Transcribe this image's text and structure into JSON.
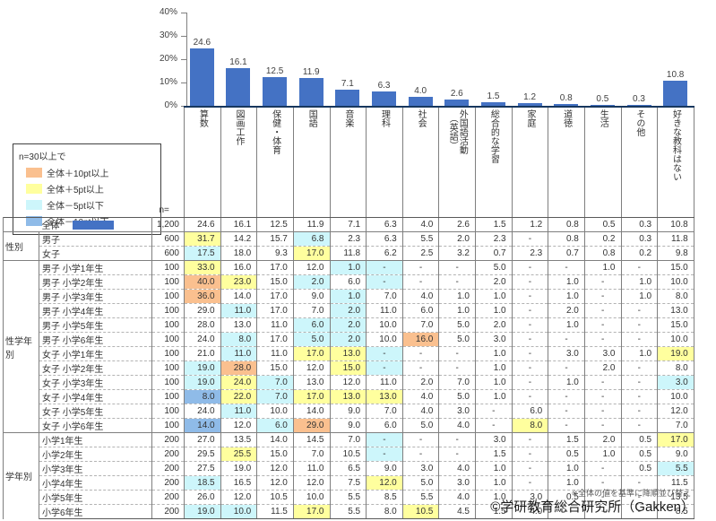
{
  "chart_data": {
    "type": "bar",
    "title": "",
    "xlabel": "",
    "ylabel": "",
    "ylim": [
      0,
      40
    ],
    "y_tick_labels": [
      "40%",
      "30%",
      "20%",
      "10%",
      "0%"
    ],
    "grid": false,
    "bar_color": "#4472c4",
    "categories": [
      "算数",
      "図画工作",
      "保健・体育",
      "国語",
      "音楽",
      "理科",
      "社会",
      "外国語活動\n（英語）",
      "総合的な学習",
      "家庭",
      "道徳",
      "生活",
      "その他",
      "好きな教科はない"
    ],
    "values": [
      24.6,
      16.1,
      12.5,
      11.9,
      7.1,
      6.3,
      4.0,
      2.6,
      1.5,
      1.2,
      0.8,
      0.5,
      0.3,
      10.8
    ],
    "table": {
      "n_header": "n=",
      "groups": [
        {
          "label": "",
          "rows": [
            {
              "label": "全体",
              "total": true,
              "n": "1,200",
              "values": [
                "24.6",
                "16.1",
                "12.5",
                "11.9",
                "7.1",
                "6.3",
                "4.0",
                "2.6",
                "1.5",
                "1.2",
                "0.8",
                "0.5",
                "0.3",
                "10.8"
              ],
              "hl": [
                "",
                "",
                "",
                "",
                "",
                "",
                "",
                "",
                "",
                "",
                "",
                "",
                "",
                ""
              ]
            }
          ]
        },
        {
          "label": "性別",
          "rows": [
            {
              "label": "男子",
              "n": "600",
              "values": [
                "31.7",
                "14.2",
                "15.7",
                "6.8",
                "2.3",
                "6.3",
                "5.5",
                "2.0",
                "2.3",
                "-",
                "0.8",
                "0.2",
                "0.3",
                "11.8"
              ],
              "hl": [
                "y",
                "",
                "",
                "c",
                "",
                "",
                "",
                "",
                "",
                "",
                "",
                "",
                "",
                ""
              ]
            },
            {
              "label": "女子",
              "n": "600",
              "values": [
                "17.5",
                "18.0",
                "9.3",
                "17.0",
                "11.8",
                "6.2",
                "2.5",
                "3.2",
                "0.7",
                "2.3",
                "0.7",
                "0.8",
                "0.2",
                "9.8"
              ],
              "hl": [
                "c",
                "",
                "",
                "y",
                "",
                "",
                "",
                "",
                "",
                "",
                "",
                "",
                "",
                ""
              ]
            }
          ]
        },
        {
          "label": "性学年別",
          "rows": [
            {
              "label": "男子 小学1年生",
              "n": "100",
              "values": [
                "33.0",
                "16.0",
                "17.0",
                "12.0",
                "1.0",
                "-",
                "-",
                "-",
                "5.0",
                "-",
                "-",
                "1.0",
                "-",
                "15.0"
              ],
              "hl": [
                "y",
                "",
                "",
                "",
                "c",
                "c",
                "",
                "",
                "",
                "",
                "",
                "",
                "",
                ""
              ]
            },
            {
              "label": "男子 小学2年生",
              "n": "100",
              "values": [
                "40.0",
                "23.0",
                "15.0",
                "2.0",
                "6.0",
                "-",
                "-",
                "-",
                "2.0",
                "-",
                "1.0",
                "-",
                "1.0",
                "10.0"
              ],
              "hl": [
                "o",
                "y",
                "",
                "c",
                "",
                "c",
                "",
                "",
                "",
                "",
                "",
                "",
                "",
                ""
              ]
            },
            {
              "label": "男子 小学3年生",
              "n": "100",
              "values": [
                "36.0",
                "14.0",
                "17.0",
                "9.0",
                "1.0",
                "7.0",
                "4.0",
                "1.0",
                "1.0",
                "-",
                "1.0",
                "-",
                "1.0",
                "8.0"
              ],
              "hl": [
                "o",
                "",
                "",
                "",
                "c",
                "",
                "",
                "",
                "",
                "",
                "",
                "",
                "",
                ""
              ]
            },
            {
              "label": "男子 小学4年生",
              "n": "100",
              "values": [
                "29.0",
                "11.0",
                "17.0",
                "7.0",
                "2.0",
                "11.0",
                "6.0",
                "1.0",
                "1.0",
                "-",
                "2.0",
                "-",
                "-",
                "13.0"
              ],
              "hl": [
                "",
                "c",
                "",
                "",
                "c",
                "",
                "",
                "",
                "",
                "",
                "",
                "",
                "",
                ""
              ]
            },
            {
              "label": "男子 小学5年生",
              "n": "100",
              "values": [
                "28.0",
                "13.0",
                "11.0",
                "6.0",
                "2.0",
                "10.0",
                "7.0",
                "5.0",
                "2.0",
                "-",
                "1.0",
                "-",
                "-",
                "15.0"
              ],
              "hl": [
                "",
                "",
                "",
                "c",
                "c",
                "",
                "",
                "",
                "",
                "",
                "",
                "",
                "",
                ""
              ]
            },
            {
              "label": "男子 小学6年生",
              "n": "100",
              "values": [
                "24.0",
                "8.0",
                "17.0",
                "5.0",
                "2.0",
                "10.0",
                "16.0",
                "5.0",
                "3.0",
                "-",
                "-",
                "-",
                "-",
                "10.0"
              ],
              "hl": [
                "",
                "c",
                "",
                "c",
                "c",
                "",
                "o",
                "",
                "",
                "",
                "",
                "",
                "",
                ""
              ]
            },
            {
              "label": "女子 小学1年生",
              "n": "100",
              "values": [
                "21.0",
                "11.0",
                "11.0",
                "17.0",
                "13.0",
                "-",
                "-",
                "-",
                "1.0",
                "-",
                "3.0",
                "3.0",
                "1.0",
                "19.0"
              ],
              "hl": [
                "",
                "c",
                "",
                "y",
                "y",
                "c",
                "",
                "",
                "",
                "",
                "",
                "",
                "",
                "y"
              ]
            },
            {
              "label": "女子 小学2年生",
              "n": "100",
              "values": [
                "19.0",
                "28.0",
                "15.0",
                "12.0",
                "15.0",
                "-",
                "-",
                "-",
                "1.0",
                "-",
                "-",
                "2.0",
                "-",
                "8.0"
              ],
              "hl": [
                "c",
                "o",
                "",
                "",
                "y",
                "c",
                "",
                "",
                "",
                "",
                "",
                "",
                "",
                ""
              ]
            },
            {
              "label": "女子 小学3年生",
              "n": "100",
              "values": [
                "19.0",
                "24.0",
                "7.0",
                "13.0",
                "12.0",
                "11.0",
                "2.0",
                "7.0",
                "1.0",
                "-",
                "1.0",
                "-",
                "-",
                "3.0"
              ],
              "hl": [
                "c",
                "y",
                "c",
                "",
                "",
                "",
                "",
                "",
                "",
                "",
                "",
                "",
                "",
                "c"
              ]
            },
            {
              "label": "女子 小学4年生",
              "n": "100",
              "values": [
                "8.0",
                "22.0",
                "7.0",
                "17.0",
                "13.0",
                "13.0",
                "4.0",
                "5.0",
                "1.0",
                "-",
                "-",
                "-",
                "-",
                "10.0"
              ],
              "hl": [
                "b",
                "y",
                "c",
                "y",
                "y",
                "y",
                "",
                "",
                "",
                "",
                "",
                "",
                "",
                ""
              ]
            },
            {
              "label": "女子 小学5年生",
              "n": "100",
              "values": [
                "24.0",
                "11.0",
                "10.0",
                "14.0",
                "9.0",
                "7.0",
                "4.0",
                "3.0",
                "-",
                "6.0",
                "-",
                "-",
                "-",
                "12.0"
              ],
              "hl": [
                "",
                "c",
                "",
                "",
                "",
                "",
                "",
                "",
                "",
                "",
                "",
                "",
                "",
                ""
              ]
            },
            {
              "label": "女子 小学6年生",
              "n": "100",
              "values": [
                "14.0",
                "12.0",
                "6.0",
                "29.0",
                "9.0",
                "6.0",
                "5.0",
                "4.0",
                "-",
                "8.0",
                "-",
                "-",
                "-",
                "7.0"
              ],
              "hl": [
                "b",
                "",
                "c",
                "o",
                "",
                "",
                "",
                "",
                "",
                "y",
                "",
                "",
                "",
                ""
              ]
            }
          ]
        },
        {
          "label": "学年別",
          "rows": [
            {
              "label": "小学1年生",
              "n": "200",
              "values": [
                "27.0",
                "13.5",
                "14.0",
                "14.5",
                "7.0",
                "-",
                "-",
                "-",
                "3.0",
                "-",
                "1.5",
                "2.0",
                "0.5",
                "17.0"
              ],
              "hl": [
                "",
                "",
                "",
                "",
                "",
                "c",
                "",
                "",
                "",
                "",
                "",
                "",
                "",
                "y"
              ]
            },
            {
              "label": "小学2年生",
              "n": "200",
              "values": [
                "29.5",
                "25.5",
                "15.0",
                "7.0",
                "10.5",
                "-",
                "-",
                "-",
                "1.5",
                "-",
                "0.5",
                "1.0",
                "0.5",
                "9.0"
              ],
              "hl": [
                "",
                "y",
                "",
                "",
                "",
                "c",
                "",
                "",
                "",
                "",
                "",
                "",
                "",
                ""
              ]
            },
            {
              "label": "小学3年生",
              "n": "200",
              "values": [
                "27.5",
                "19.0",
                "12.0",
                "11.0",
                "6.5",
                "9.0",
                "3.0",
                "4.0",
                "1.0",
                "-",
                "1.0",
                "-",
                "0.5",
                "5.5"
              ],
              "hl": [
                "",
                "",
                "",
                "",
                "",
                "",
                "",
                "",
                "",
                "",
                "",
                "",
                "",
                "c"
              ]
            },
            {
              "label": "小学4年生",
              "n": "200",
              "values": [
                "18.5",
                "16.5",
                "12.0",
                "12.0",
                "7.5",
                "12.0",
                "5.0",
                "3.0",
                "1.0",
                "-",
                "1.0",
                "-",
                "-",
                "11.5"
              ],
              "hl": [
                "c",
                "",
                "",
                "",
                "",
                "y",
                "",
                "",
                "",
                "",
                "",
                "",
                "",
                ""
              ]
            },
            {
              "label": "小学5年生",
              "n": "200",
              "values": [
                "26.0",
                "12.0",
                "10.5",
                "10.0",
                "5.5",
                "8.5",
                "5.5",
                "4.0",
                "1.0",
                "3.0",
                "0.5",
                "-",
                "-",
                "13.5"
              ],
              "hl": [
                "",
                "",
                "",
                "",
                "",
                "",
                "",
                "",
                "",
                "",
                "",
                "",
                "",
                ""
              ]
            },
            {
              "label": "小学6年生",
              "n": "200",
              "values": [
                "19.0",
                "10.0",
                "11.5",
                "17.0",
                "5.5",
                "8.0",
                "10.5",
                "4.5",
                "1.5",
                "4.0",
                "-",
                "-",
                "-",
                "8.5"
              ],
              "hl": [
                "c",
                "c",
                "",
                "y",
                "",
                "",
                "y",
                "",
                "",
                "",
                "",
                "",
                "",
                ""
              ]
            }
          ]
        }
      ]
    }
  },
  "highlight_colors": {
    "o": "#fac08f",
    "y": "#ffff9e",
    "c": "#cdf6fb",
    "b": "#8fbbe8"
  },
  "legend": {
    "title": "n=30以上で",
    "items": [
      {
        "label": "全体＋10pt以上",
        "code": "o"
      },
      {
        "label": "全体＋5pt以上",
        "code": "y"
      },
      {
        "label": "全体－5pt以下",
        "code": "c"
      },
      {
        "label": "全体－10pt以下",
        "code": "b"
      }
    ]
  },
  "footnote": "※全体の値を基準に降順並び替え",
  "copyright": "©学研教育総合研究所（Gakken）"
}
